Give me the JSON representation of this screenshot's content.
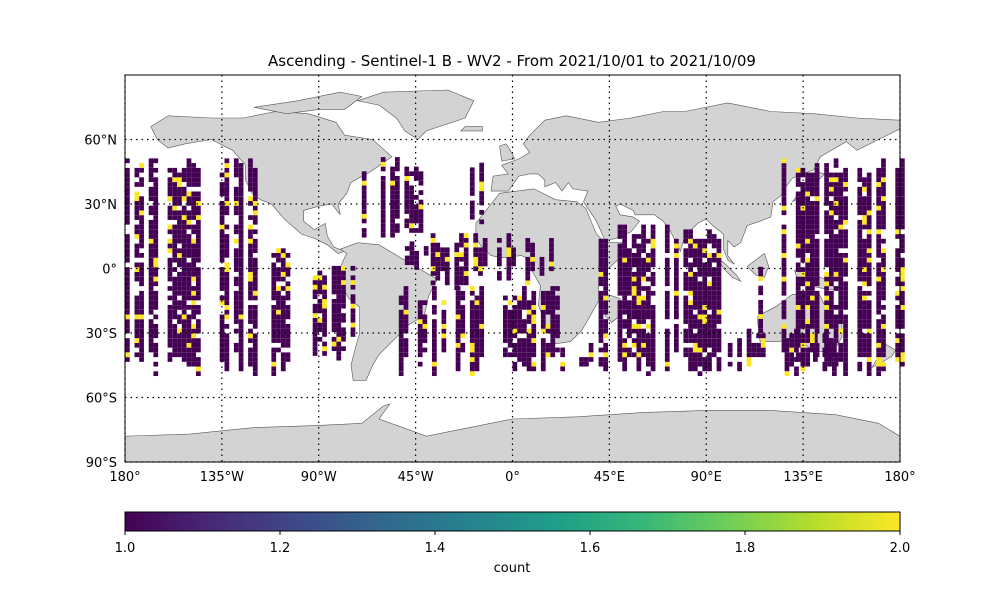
{
  "title": "Ascending - Sentinel-1 B - WV2 - From 2021/10/01 to 2021/10/09",
  "map": {
    "lon_ticks": [
      -180,
      -135,
      -90,
      -45,
      0,
      45,
      90,
      135,
      180
    ],
    "lon_tick_labels": [
      "180°",
      "135°W",
      "90°W",
      "45°W",
      "0°",
      "45°E",
      "90°E",
      "135°E",
      "180°"
    ],
    "lat_ticks": [
      60,
      30,
      0,
      -30,
      -60,
      -90
    ],
    "lat_tick_labels": [
      "60°N",
      "30°N",
      "0°",
      "30°S",
      "60°S",
      "90°S"
    ],
    "extent": {
      "lon": [
        -180,
        180
      ],
      "lat": [
        -90,
        90
      ]
    },
    "land_color": "#d3d3d3",
    "grid": "dotted",
    "low_color": "#440154",
    "high_color": "#fde725"
  },
  "colorbar": {
    "label": "count",
    "ticks": [
      1.0,
      1.2,
      1.4,
      1.6,
      1.8,
      2.0
    ],
    "tick_labels": [
      "1.0",
      "1.2",
      "1.4",
      "1.6",
      "1.8",
      "2.0"
    ],
    "range": [
      1.0,
      2.0
    ],
    "colormap": [
      "#440154",
      "#482878",
      "#3e4989",
      "#31688e",
      "#26828e",
      "#1f9e89",
      "#35b779",
      "#6ece58",
      "#b5de2b",
      "#fde725"
    ],
    "orientation": "horizontal"
  },
  "chart_data": {
    "type": "heatmap",
    "title": "Ascending - Sentinel-1 B - WV2 - From 2021/10/01 to 2021/10/09",
    "xlabel": "",
    "ylabel": "",
    "value_label": "count",
    "value_range": [
      1,
      2
    ],
    "lat_range_of_cells": [
      -50,
      50
    ],
    "swath_bands": [
      {
        "lon": [
          -180,
          -115
        ],
        "lat": [
          -50,
          50
        ]
      },
      {
        "lon": [
          -112,
          -100
        ],
        "lat": [
          -50,
          8
        ]
      },
      {
        "lon": [
          -95,
          -73
        ],
        "lat": [
          -45,
          0
        ]
      },
      {
        "lon": [
          -70,
          -38
        ],
        "lat": [
          10,
          50
        ]
      },
      {
        "lon": [
          -50,
          -40
        ],
        "lat": [
          -5,
          14
        ]
      },
      {
        "lon": [
          -55,
          20
        ],
        "lat": [
          -50,
          -10
        ]
      },
      {
        "lon": [
          -38,
          18
        ],
        "lat": [
          -10,
          15
        ]
      },
      {
        "lon": [
          -22,
          -10
        ],
        "lat": [
          14,
          50
        ]
      },
      {
        "lon": [
          20,
          40
        ],
        "lat": [
          -50,
          -35
        ]
      },
      {
        "lon": [
          40,
          75
        ],
        "lat": [
          -50,
          20
        ]
      },
      {
        "lon": [
          75,
          100
        ],
        "lat": [
          -50,
          20
        ]
      },
      {
        "lon": [
          100,
          152
        ],
        "lat": [
          -50,
          -30
        ]
      },
      {
        "lon": [
          112,
          118
        ],
        "lat": [
          -30,
          0
        ]
      },
      {
        "lon": [
          125,
          180
        ],
        "lat": [
          -50,
          50
        ]
      }
    ]
  }
}
